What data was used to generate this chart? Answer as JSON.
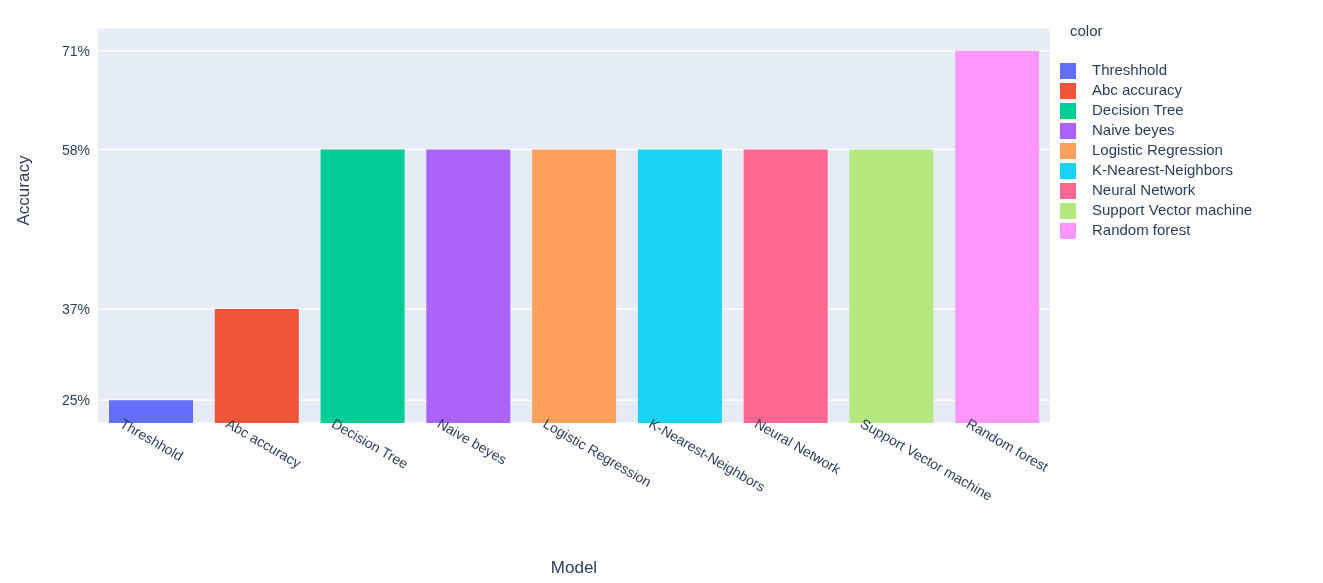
{
  "chart_data": {
    "type": "bar",
    "xlabel": "Model",
    "ylabel": "Accuracy",
    "legend_title": "color",
    "legend": "right",
    "grid": "y",
    "stacked": true,
    "categories": [
      "Threshhold",
      "Abc accuracy",
      "Decision Tree",
      "Naive beyes",
      "Logistic Regression",
      "K-Nearest-Neighbors",
      "Neural Network",
      "Support Vector machine",
      "Random forest"
    ],
    "series": [
      {
        "name": "Threshhold",
        "color": "#636efa",
        "values": [
          25,
          null,
          null,
          null,
          null,
          null,
          null,
          null,
          null
        ]
      },
      {
        "name": "Abc accuracy",
        "color": "#ef553b",
        "values": [
          null,
          37,
          null,
          null,
          null,
          null,
          null,
          null,
          null
        ]
      },
      {
        "name": "Decision Tree",
        "color": "#00cc96",
        "values": [
          null,
          null,
          58,
          null,
          null,
          null,
          null,
          null,
          null
        ]
      },
      {
        "name": "Naive beyes",
        "color": "#ab63fa",
        "values": [
          null,
          null,
          null,
          58,
          null,
          null,
          null,
          null,
          null
        ]
      },
      {
        "name": "Logistic Regression",
        "color": "#ffa15a",
        "values": [
          null,
          null,
          null,
          null,
          58,
          null,
          null,
          null,
          null
        ]
      },
      {
        "name": "K-Nearest-Neighbors",
        "color": "#19d3f3",
        "values": [
          null,
          null,
          null,
          null,
          null,
          58,
          null,
          null,
          null
        ]
      },
      {
        "name": "Neural Network",
        "color": "#ff6692",
        "values": [
          null,
          null,
          null,
          null,
          null,
          null,
          58,
          null,
          null
        ]
      },
      {
        "name": "Support Vector machine",
        "color": "#b6e880",
        "values": [
          null,
          null,
          null,
          null,
          null,
          null,
          null,
          58,
          null
        ]
      },
      {
        "name": "Random forest",
        "color": "#ff97ff",
        "values": [
          null,
          null,
          null,
          null,
          null,
          null,
          null,
          null,
          71
        ]
      }
    ],
    "ylim": [
      22,
      74
    ],
    "yticks": [
      {
        "value": 25,
        "label": "25%"
      },
      {
        "value": 37,
        "label": "37%"
      },
      {
        "value": 58,
        "label": "58%"
      },
      {
        "value": 71,
        "label": "71%"
      }
    ]
  }
}
